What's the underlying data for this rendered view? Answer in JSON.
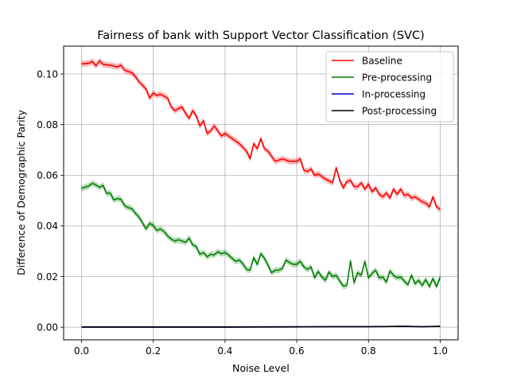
{
  "chart_data": {
    "type": "line",
    "title": "Fairness of bank with Support Vector Classification (SVC)",
    "xlabel": "Noise Level",
    "ylabel": "Difference of Demographic Parity",
    "xlim": [
      -0.05,
      1.05
    ],
    "ylim": [
      -0.005,
      0.111
    ],
    "xticks": [
      0.0,
      0.2,
      0.4,
      0.6,
      0.8,
      1.0
    ],
    "xtick_labels": [
      "0.0",
      "0.2",
      "0.4",
      "0.6",
      "0.8",
      "1.0"
    ],
    "yticks": [
      0.0,
      0.02,
      0.04,
      0.06,
      0.08,
      0.1
    ],
    "ytick_labels": [
      "0.00",
      "0.02",
      "0.04",
      "0.06",
      "0.08",
      "0.10"
    ],
    "grid": true,
    "legend_position": "top-right",
    "series": [
      {
        "name": "Baseline",
        "color": "#ff0000",
        "band": 0.0012,
        "x": [
          0.0,
          0.02,
          0.03,
          0.04,
          0.05,
          0.06,
          0.08,
          0.1,
          0.11,
          0.12,
          0.14,
          0.15,
          0.16,
          0.18,
          0.19,
          0.2,
          0.21,
          0.22,
          0.24,
          0.25,
          0.26,
          0.28,
          0.29,
          0.3,
          0.31,
          0.32,
          0.33,
          0.34,
          0.35,
          0.36,
          0.37,
          0.38,
          0.39,
          0.4,
          0.42,
          0.44,
          0.46,
          0.47,
          0.48,
          0.49,
          0.5,
          0.51,
          0.52,
          0.54,
          0.56,
          0.58,
          0.6,
          0.61,
          0.62,
          0.63,
          0.64,
          0.65,
          0.66,
          0.68,
          0.7,
          0.71,
          0.72,
          0.73,
          0.74,
          0.75,
          0.76,
          0.77,
          0.78,
          0.79,
          0.8,
          0.81,
          0.82,
          0.83,
          0.84,
          0.85,
          0.86,
          0.87,
          0.88,
          0.89,
          0.9,
          0.91,
          0.92,
          0.93,
          0.94,
          0.95,
          0.96,
          0.97,
          0.98,
          0.99,
          1.0
        ],
        "values": [
          0.104,
          0.1042,
          0.105,
          0.1032,
          0.1052,
          0.1038,
          0.1035,
          0.1028,
          0.1035,
          0.1015,
          0.1005,
          0.099,
          0.097,
          0.094,
          0.0905,
          0.0925,
          0.0915,
          0.092,
          0.0905,
          0.087,
          0.0855,
          0.087,
          0.0845,
          0.0825,
          0.0855,
          0.0835,
          0.0795,
          0.0815,
          0.0765,
          0.0775,
          0.0795,
          0.0775,
          0.0755,
          0.0765,
          0.0745,
          0.0725,
          0.0695,
          0.0665,
          0.0725,
          0.0705,
          0.0745,
          0.0705,
          0.0695,
          0.0655,
          0.0665,
          0.0655,
          0.0655,
          0.0665,
          0.062,
          0.0615,
          0.0625,
          0.06,
          0.0605,
          0.0585,
          0.057,
          0.063,
          0.058,
          0.055,
          0.0575,
          0.058,
          0.0555,
          0.0555,
          0.057,
          0.0545,
          0.0565,
          0.0535,
          0.055,
          0.0525,
          0.0515,
          0.053,
          0.051,
          0.0545,
          0.0525,
          0.0545,
          0.052,
          0.0525,
          0.051,
          0.0515,
          0.0505,
          0.0495,
          0.049,
          0.0475,
          0.0515,
          0.0475,
          0.0465
        ]
      },
      {
        "name": "Pre-processing",
        "color": "#008000",
        "band": 0.0012,
        "x": [
          0.0,
          0.02,
          0.03,
          0.04,
          0.05,
          0.06,
          0.07,
          0.08,
          0.09,
          0.1,
          0.11,
          0.12,
          0.13,
          0.14,
          0.15,
          0.16,
          0.17,
          0.18,
          0.19,
          0.2,
          0.21,
          0.22,
          0.23,
          0.24,
          0.25,
          0.26,
          0.27,
          0.28,
          0.29,
          0.3,
          0.31,
          0.32,
          0.33,
          0.34,
          0.35,
          0.36,
          0.37,
          0.38,
          0.39,
          0.4,
          0.41,
          0.42,
          0.43,
          0.44,
          0.45,
          0.46,
          0.47,
          0.48,
          0.49,
          0.5,
          0.51,
          0.52,
          0.53,
          0.54,
          0.55,
          0.56,
          0.57,
          0.58,
          0.59,
          0.6,
          0.61,
          0.62,
          0.63,
          0.64,
          0.65,
          0.66,
          0.67,
          0.68,
          0.69,
          0.7,
          0.71,
          0.72,
          0.73,
          0.74,
          0.75,
          0.76,
          0.77,
          0.78,
          0.79,
          0.8,
          0.81,
          0.82,
          0.83,
          0.84,
          0.85,
          0.86,
          0.87,
          0.88,
          0.89,
          0.9,
          0.91,
          0.92,
          0.93,
          0.94,
          0.95,
          0.96,
          0.97,
          0.98,
          0.99,
          1.0
        ],
        "values": [
          0.0548,
          0.0558,
          0.0568,
          0.0562,
          0.0552,
          0.056,
          0.0528,
          0.053,
          0.0502,
          0.0508,
          0.0505,
          0.048,
          0.0472,
          0.0468,
          0.045,
          0.0435,
          0.0412,
          0.0388,
          0.041,
          0.0402,
          0.0382,
          0.0388,
          0.0378,
          0.036,
          0.0348,
          0.034,
          0.0345,
          0.034,
          0.0335,
          0.0352,
          0.0325,
          0.0318,
          0.0288,
          0.0295,
          0.0278,
          0.0288,
          0.0285,
          0.0298,
          0.029,
          0.0295,
          0.0285,
          0.0272,
          0.026,
          0.0265,
          0.025,
          0.0228,
          0.0225,
          0.0275,
          0.0248,
          0.029,
          0.0272,
          0.0245,
          0.0215,
          0.0225,
          0.0225,
          0.0232,
          0.0265,
          0.0255,
          0.0248,
          0.0248,
          0.026,
          0.0238,
          0.0228,
          0.0238,
          0.0195,
          0.022,
          0.0198,
          0.0185,
          0.0218,
          0.02,
          0.0205,
          0.0182,
          0.0162,
          0.0165,
          0.0262,
          0.0175,
          0.0215,
          0.0205,
          0.026,
          0.0195,
          0.0212,
          0.0225,
          0.0195,
          0.0198,
          0.0178,
          0.0222,
          0.0205,
          0.0195,
          0.0198,
          0.0182,
          0.0168,
          0.0205,
          0.0172,
          0.0185,
          0.0165,
          0.0188,
          0.016,
          0.0192,
          0.016,
          0.0198
        ]
      },
      {
        "name": "In-processing",
        "color": "#0000cc",
        "band": 0.0,
        "x": [
          0.0,
          0.2,
          0.4,
          0.6,
          0.7,
          0.8,
          0.9,
          0.95,
          1.0
        ],
        "values": [
          0.0001,
          0.0001,
          0.0001,
          0.0002,
          0.0002,
          0.0002,
          0.0003,
          0.0002,
          0.0003
        ]
      },
      {
        "name": "Post-processing",
        "color": "#000000",
        "band": 0.0,
        "x": [
          0.0,
          0.2,
          0.4,
          0.6,
          0.7,
          0.8,
          0.9,
          0.95,
          1.0
        ],
        "values": [
          0.0,
          0.0,
          0.0,
          0.0001,
          0.0002,
          0.0002,
          0.0003,
          0.0002,
          0.0003
        ]
      }
    ]
  }
}
